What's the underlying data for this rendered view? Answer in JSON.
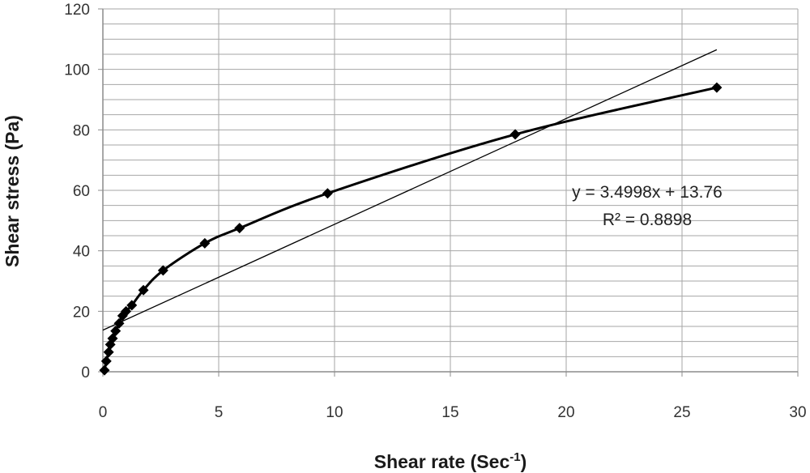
{
  "chart_data": {
    "type": "scatter",
    "xlabel_main": "Shear rate (Sec",
    "xlabel_sup": "-1",
    "xlabel_end": ")",
    "ylabel": "Shear stress (Pa)",
    "xlim": [
      0,
      30
    ],
    "ylim": [
      0,
      120
    ],
    "xticks": [
      0,
      5,
      10,
      15,
      20,
      25,
      30
    ],
    "yticks": [
      0,
      20,
      40,
      60,
      80,
      100,
      120
    ],
    "y_minor_step": 5,
    "grid": true,
    "series": [
      {
        "marker": "diamond",
        "line": "smooth",
        "color": "#000000",
        "points": [
          [
            0.07,
            0.5
          ],
          [
            0.15,
            3.5
          ],
          [
            0.25,
            6.5
          ],
          [
            0.32,
            9
          ],
          [
            0.42,
            11
          ],
          [
            0.55,
            13.5
          ],
          [
            0.7,
            16
          ],
          [
            0.85,
            18.5
          ],
          [
            1.0,
            20
          ],
          [
            1.25,
            22
          ],
          [
            1.75,
            27
          ],
          [
            2.6,
            33.5
          ],
          [
            4.4,
            42.5
          ],
          [
            5.9,
            47.5
          ],
          [
            9.7,
            59
          ],
          [
            17.8,
            78.5
          ],
          [
            26.5,
            94
          ]
        ]
      }
    ],
    "trendline": {
      "slope": 3.4998,
      "intercept": 13.76,
      "x_range": [
        0,
        26.5
      ],
      "color": "#000000"
    },
    "annotations": {
      "equation": "y = 3.4998x + 13.76",
      "r_squared": "R² = 0.8898"
    },
    "colors": {
      "grid": "#a6a6a6",
      "axis": "#8c8c8c",
      "marker": "#000000"
    }
  }
}
